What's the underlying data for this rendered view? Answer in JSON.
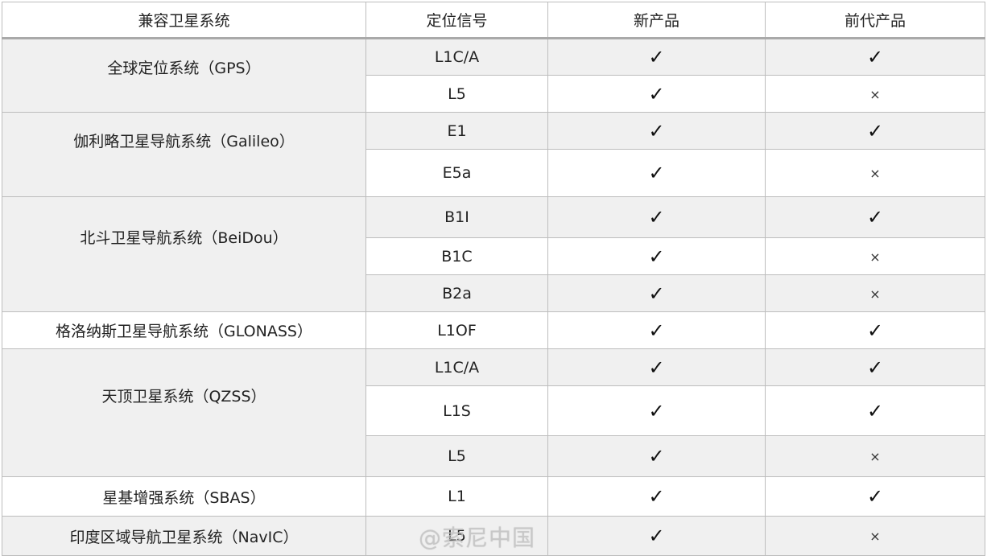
{
  "headers": [
    "兼容卫星系统",
    "定位信号",
    "新产品",
    "前代产品"
  ],
  "marks": {
    "yes": "✓",
    "no": "×"
  },
  "rows": [
    {
      "system": "全球定位系统（GPS）",
      "signal": "L1C/A",
      "new": "yes",
      "old": "yes"
    },
    {
      "system": "",
      "signal": "L5",
      "new": "yes",
      "old": "no"
    },
    {
      "system": "伽利略卫星导航系统（Galileo）",
      "signal": "E1",
      "new": "yes",
      "old": "yes"
    },
    {
      "system": "",
      "signal": "E5a",
      "new": "yes",
      "old": "no"
    },
    {
      "system": "北斗卫星导航系统（BeiDou）",
      "signal": "B1I",
      "new": "yes",
      "old": "yes"
    },
    {
      "system": "",
      "signal": "B1C",
      "new": "yes",
      "old": "no"
    },
    {
      "system": "",
      "signal": "B2a",
      "new": "yes",
      "old": "no"
    },
    {
      "system": "格洛纳斯卫星导航系统（GLONASS）",
      "signal": "L1OF",
      "new": "yes",
      "old": "yes"
    },
    {
      "system": "天顶卫星系统（QZSS）",
      "signal": "L1C/A",
      "new": "yes",
      "old": "yes"
    },
    {
      "system": "",
      "signal": "L1S",
      "new": "yes",
      "old": "yes"
    },
    {
      "system": "",
      "signal": "L5",
      "new": "yes",
      "old": "no"
    },
    {
      "system": "星基增强系统（SBAS）",
      "signal": "L1",
      "new": "yes",
      "old": "yes"
    },
    {
      "system": "印度区域导航卫星系统（NavIC）",
      "signal": "L5",
      "new": "yes",
      "old": "no"
    }
  ],
  "watermark": "@索尼中国"
}
